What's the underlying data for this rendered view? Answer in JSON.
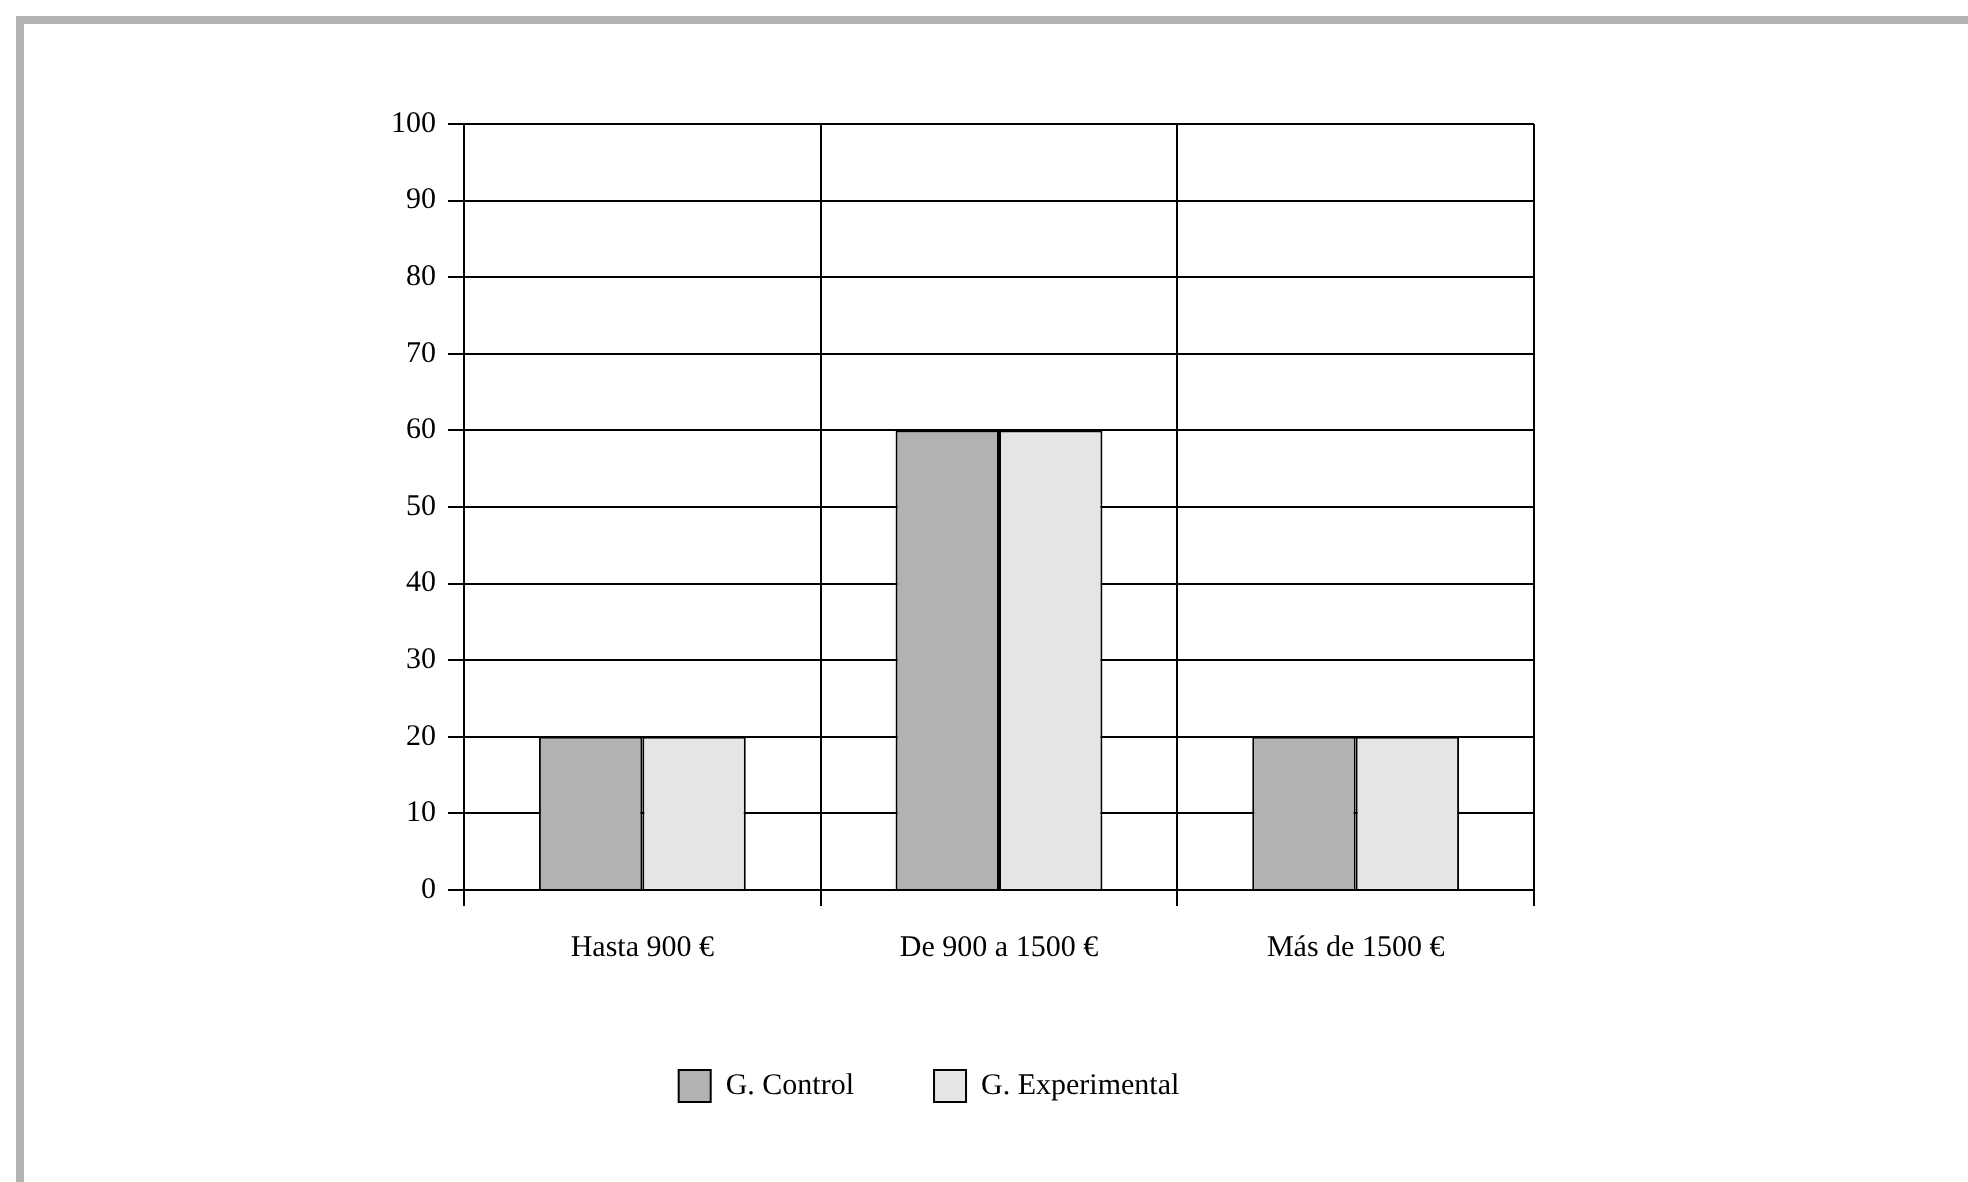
{
  "chart_data": {
    "type": "bar",
    "categories": [
      "Hasta 900 €",
      "De 900 a 1500 €",
      "Más de 1500 €"
    ],
    "series": [
      {
        "name": "G. Control",
        "color": "#b2b2b2",
        "values": [
          20,
          60,
          20
        ]
      },
      {
        "name": "G. Experimental",
        "color": "#e5e5e5",
        "values": [
          20,
          60,
          20
        ]
      }
    ],
    "ylim": [
      0,
      100
    ],
    "yticks": [
      0,
      10,
      20,
      30,
      40,
      50,
      60,
      70,
      80,
      90,
      100
    ],
    "grid": true,
    "legend": "bottom"
  }
}
